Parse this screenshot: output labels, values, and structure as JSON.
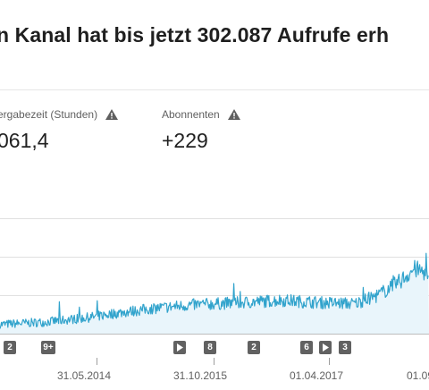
{
  "headline": "n Kanal hat bis jetzt 302.087 Aufrufe erh",
  "metrics": [
    {
      "label": "ergabezeit (Stunden)",
      "value": "061,4",
      "icon": "warning-icon"
    },
    {
      "label": "Abonnenten",
      "value": "+229",
      "icon": "warning-icon"
    }
  ],
  "markers": [
    {
      "text": "2"
    },
    {
      "text": "9+"
    },
    {
      "text": "",
      "icon": "play-icon"
    },
    {
      "text": "8"
    },
    {
      "text": "2"
    },
    {
      "text": "6"
    },
    {
      "text": "",
      "icon": "play-icon"
    },
    {
      "text": "3"
    }
  ],
  "x_axis_labels": [
    "31.05.2014",
    "31.10.2015",
    "01.04.2017",
    "01.09"
  ],
  "colors": {
    "line": "#31a3cc",
    "area": "#e9f5fb",
    "gridline": "#e0e0e0",
    "marker": "#616161"
  },
  "chart_data": {
    "type": "area",
    "xlabel": "",
    "ylabel": "",
    "x_ticks": [
      "31.05.2014",
      "31.10.2015",
      "01.04.2017",
      "01.09"
    ],
    "y_ticks": [],
    "grid": true,
    "note_series": "daily views trend, estimated relative level 0-100",
    "trend_points": [
      {
        "x": "2013-01",
        "y": 8
      },
      {
        "x": "2013-07",
        "y": 10
      },
      {
        "x": "2014-01",
        "y": 14
      },
      {
        "x": "2014-05",
        "y": 18
      },
      {
        "x": "2014-10",
        "y": 22
      },
      {
        "x": "2015-03",
        "y": 25
      },
      {
        "x": "2015-10",
        "y": 27
      },
      {
        "x": "2016-03",
        "y": 29
      },
      {
        "x": "2016-08",
        "y": 27
      },
      {
        "x": "2017-01",
        "y": 26
      },
      {
        "x": "2017-04",
        "y": 33
      },
      {
        "x": "2017-07",
        "y": 45
      },
      {
        "x": "2017-09",
        "y": 56
      },
      {
        "x": "2017-11",
        "y": 52
      }
    ]
  }
}
